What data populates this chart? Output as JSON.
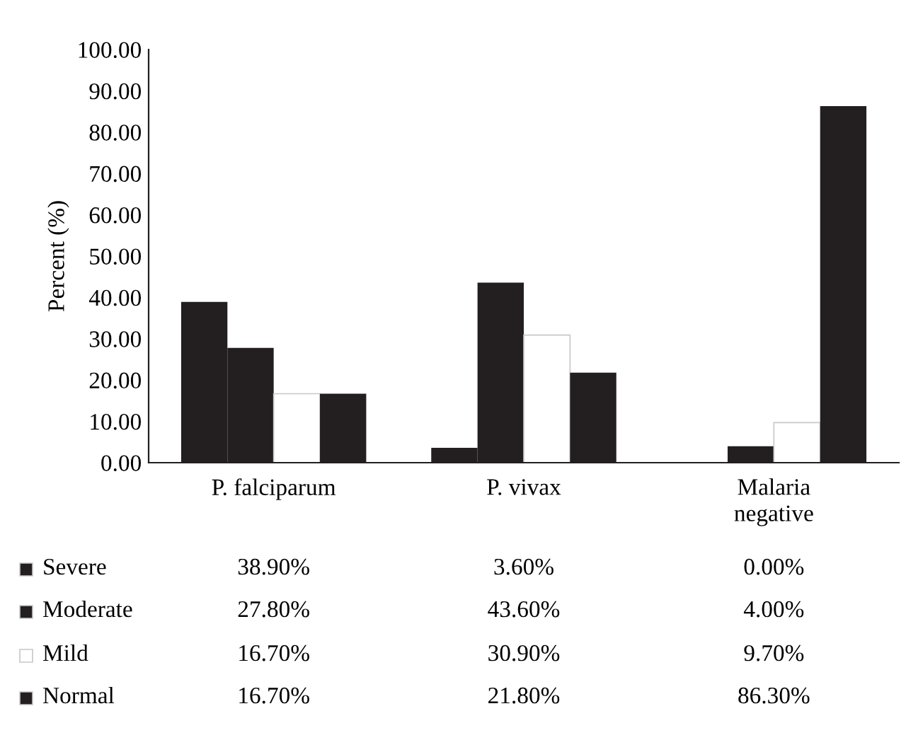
{
  "chart_data": {
    "type": "bar",
    "ylabel": "Percent (%)",
    "categories": [
      "P. falciparum",
      "P. vivax",
      "Malaria\nnegative"
    ],
    "series": [
      {
        "name": "Severe",
        "color": "#231f20",
        "values": [
          38.9,
          3.6,
          0.0
        ],
        "value_labels": [
          "38.90%",
          "3.60%",
          "0.00%"
        ]
      },
      {
        "name": "Moderate",
        "color": "#231f20",
        "values": [
          27.8,
          43.6,
          4.0
        ],
        "value_labels": [
          "27.80%",
          "43.60%",
          "4.00%"
        ]
      },
      {
        "name": "Mild",
        "color": "#ffffff",
        "values": [
          16.7,
          30.9,
          9.7
        ],
        "value_labels": [
          "16.70%",
          "30.90%",
          "9.70%"
        ]
      },
      {
        "name": "Normal",
        "color": "#231f20",
        "values": [
          16.7,
          21.8,
          86.3
        ],
        "value_labels": [
          "16.70%",
          "21.80%",
          "86.30%"
        ]
      }
    ],
    "ylim": [
      0,
      100
    ],
    "yticks": [
      {
        "value": 0,
        "label": "0.00"
      },
      {
        "value": 10,
        "label": "10.00"
      },
      {
        "value": 20,
        "label": "20.00"
      },
      {
        "value": 30,
        "label": "30.00"
      },
      {
        "value": 40,
        "label": "40.00"
      },
      {
        "value": 50,
        "label": "50.00"
      },
      {
        "value": 60,
        "label": "60.00"
      },
      {
        "value": 70,
        "label": "70.00"
      },
      {
        "value": 80,
        "label": "80.00"
      },
      {
        "value": 90,
        "label": "90.00"
      },
      {
        "value": 100,
        "label": "100.00"
      }
    ],
    "grid": false,
    "legend": "bottom"
  }
}
